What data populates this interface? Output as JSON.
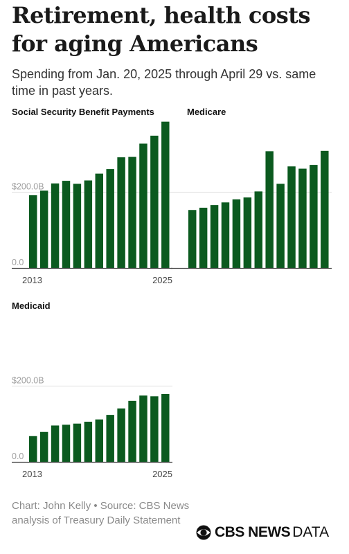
{
  "header": {
    "title": "Retirement, health costs for aging Americans",
    "subtitle": "Spending from Jan. 20, 2025 through April 29 vs. same time in past years."
  },
  "footer": {
    "credit": "Chart: John Kelly • Source: CBS News analysis of Treasury Daily Statement",
    "brand_bold": "CBS NEWS",
    "brand_light": "DATA"
  },
  "colors": {
    "bar": "#0b5a1f",
    "baseline": "#444444",
    "gridline": "#dddddd",
    "tick_label": "#a0a0a0",
    "year_label": "#444444"
  },
  "chart_data": [
    {
      "type": "bar",
      "title": "Social Security Benefit Payments",
      "x": [
        2013,
        2014,
        2015,
        2016,
        2017,
        2018,
        2019,
        2020,
        2021,
        2022,
        2023,
        2024,
        2025
      ],
      "values": [
        192,
        204,
        223,
        230,
        222,
        231,
        249,
        261,
        292,
        293,
        328,
        349,
        386
      ],
      "ylim": [
        0,
        400
      ],
      "yticks": [
        {
          "value": 0,
          "label": "0.0"
        },
        {
          "value": 200,
          "label": "$200.0B"
        }
      ],
      "xticks": [
        "2013",
        "2025"
      ],
      "grid": true
    },
    {
      "type": "bar",
      "title": "Medicare",
      "x": [
        2013,
        2014,
        2015,
        2016,
        2017,
        2018,
        2019,
        2020,
        2021,
        2022,
        2023,
        2024,
        2025
      ],
      "values": [
        153,
        159,
        166,
        173,
        181,
        186,
        202,
        308,
        222,
        268,
        262,
        272,
        309
      ],
      "ylim": [
        0,
        400
      ],
      "yticks": [
        {
          "value": 0,
          "label": ""
        },
        {
          "value": 200,
          "label": ""
        }
      ],
      "xticks": [
        "",
        ""
      ],
      "grid": true
    },
    {
      "type": "bar",
      "title": "Medicaid",
      "x": [
        2013,
        2014,
        2015,
        2016,
        2017,
        2018,
        2019,
        2020,
        2021,
        2022,
        2023,
        2024,
        2025
      ],
      "values": [
        68,
        79,
        96,
        98,
        101,
        106,
        112,
        124,
        141,
        161,
        175,
        173,
        179
      ],
      "ylim": [
        0,
        400
      ],
      "yticks": [
        {
          "value": 0,
          "label": "0.0"
        },
        {
          "value": 200,
          "label": "$200.0B"
        }
      ],
      "xticks": [
        "2013",
        "2025"
      ],
      "grid": true
    }
  ]
}
